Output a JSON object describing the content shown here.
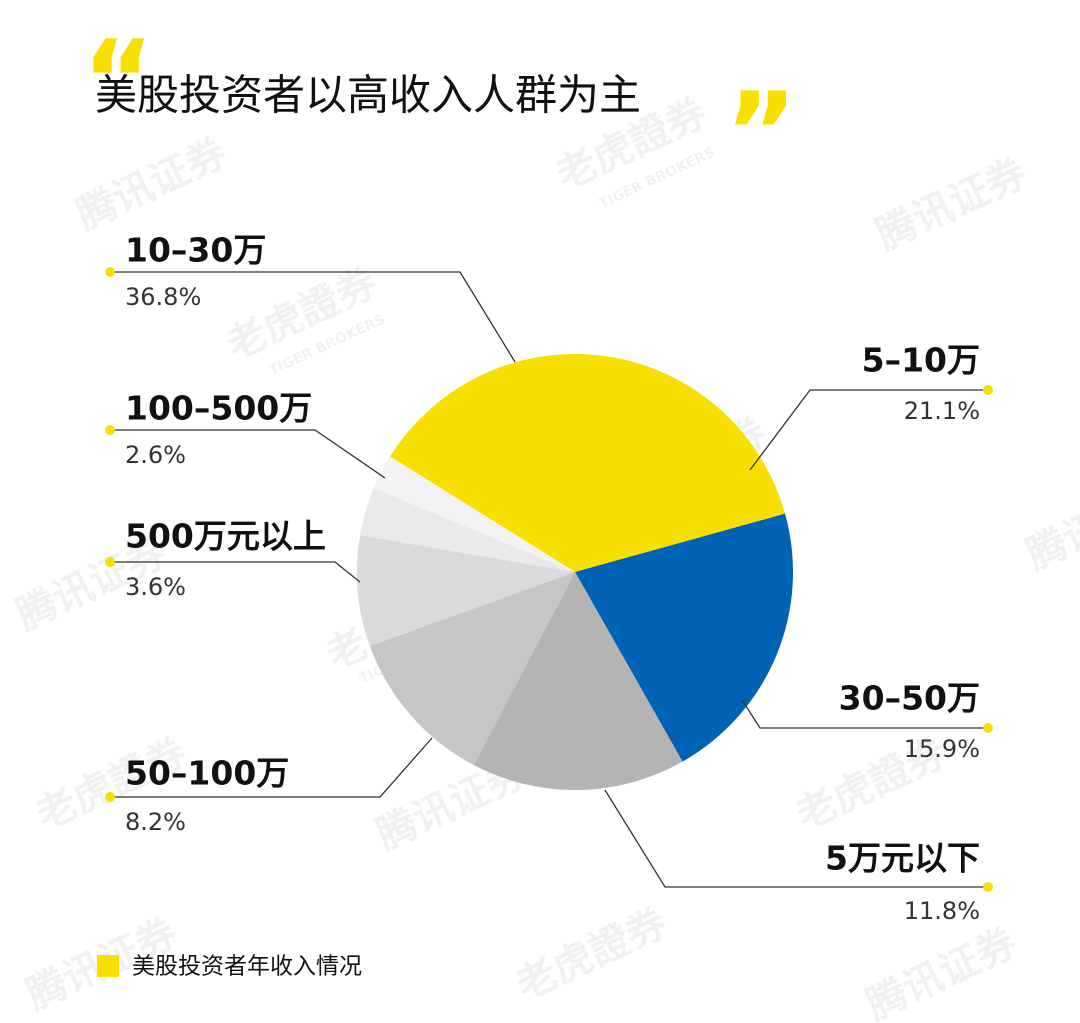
{
  "chart_data": {
    "type": "pie",
    "title": "美股投资者以高收入人群为主",
    "title_marks": [
      "“",
      "”"
    ],
    "series_name": "美股投资者年收入情况",
    "categories": [
      "10–30万",
      "5–10万",
      "30–50万",
      "5万元以下",
      "50–100万",
      "500万元以上",
      "100–500万"
    ],
    "values": [
      36.8,
      21.1,
      15.9,
      11.8,
      8.2,
      3.6,
      2.6
    ],
    "value_labels": [
      "36.8%",
      "21.1%",
      "15.9%",
      "11.8%",
      "8.2%",
      "3.6%",
      "2.6%"
    ],
    "colors": [
      "#f7e000",
      "#0062b4",
      "#b4b4b4",
      "#c6c6c6",
      "#dadada",
      "#e9e9e9",
      "#f3f3f3"
    ],
    "legend_color": "#f7e000",
    "watermarks": [
      "腾讯证券",
      "老虎證券",
      "TIGER BROKERS"
    ]
  }
}
